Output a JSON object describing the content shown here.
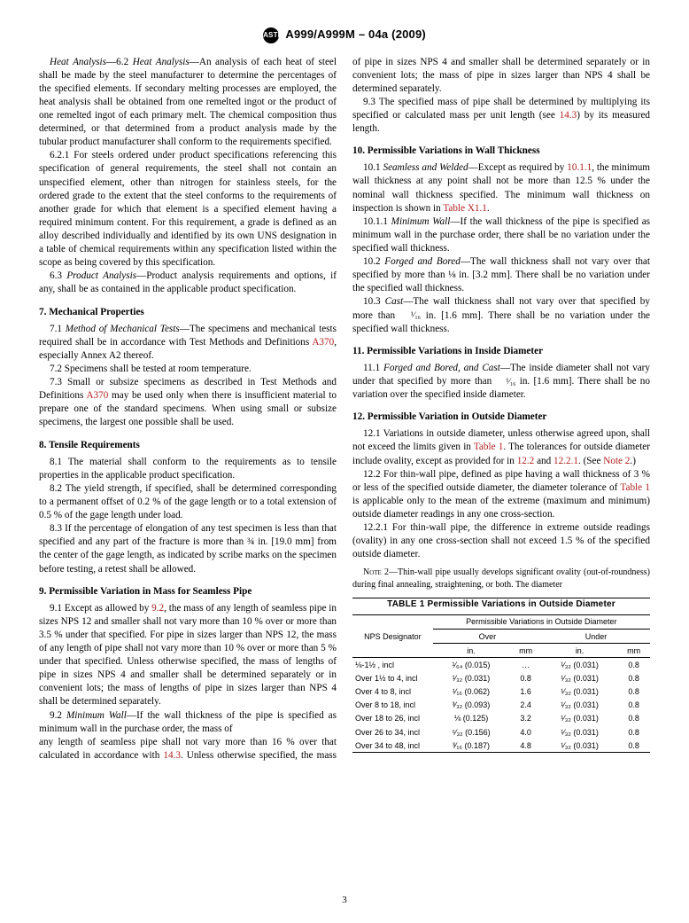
{
  "header": {
    "spec": "A999/A999M – 04a (2009)",
    "logo_abbr": "ASTM"
  },
  "page_number": "3",
  "left_col": {
    "p6_2": "6.2 Heat Analysis—An analysis of each heat of steel shall be made by the steel manufacturer to determine the percentages of the specified elements. If secondary melting processes are employed, the heat analysis shall be obtained from one remelted ingot or the product of one remelted ingot of each primary melt. The chemical composition thus determined, or that determined from a product analysis made by the tubular product manufacturer shall conform to the requirements specified.",
    "p6_2_1": "6.2.1 For steels ordered under product specifications referencing this specification of general requirements, the steel shall not contain an unspecified element, other than nitrogen for stainless steels, for the ordered grade to the extent that the steel conforms to the requirements of another grade for which that element is a specified element having a required minimum content. For this requirement, a grade is defined as an alloy described individually and identified by its own UNS designation in a table of chemical requirements within any specification listed within the scope as being covered by this specification.",
    "p6_3": "6.3 Product Analysis—Product analysis requirements and options, if any, shall be as contained in the applicable product specification.",
    "h7": "7. Mechanical Properties",
    "p7_1a": "7.1 Method of Mechanical Tests—The specimens and mechanical tests required shall be in accordance with Test Methods and Definitions ",
    "p7_1b": ", especially Annex A2 thereof.",
    "ref_A370": "A370",
    "p7_2": "7.2 Specimens shall be tested at room temperature.",
    "p7_3a": "7.3 Small or subsize specimens as described in Test Methods and Definitions ",
    "p7_3b": " may be used only when there is insufficient material to prepare one of the standard specimens. When using small or subsize specimens, the largest one possible shall be used.",
    "h8": "8. Tensile Requirements",
    "p8_1": "8.1 The material shall conform to the requirements as to tensile properties in the applicable product specification.",
    "p8_2": "8.2 The yield strength, if specified, shall be determined corresponding to a permanent offset of 0.2 % of the gage length or to a total extension of 0.5 % of the gage length under load.",
    "p8_3": "8.3 If the percentage of elongation of any test specimen is less than that specified and any part of the fracture is more than ¾ in. [19.0 mm] from the center of the gage length, as indicated by scribe marks on the specimen before testing, a retest shall be allowed.",
    "h9": "9. Permissible Variation in Mass for Seamless Pipe",
    "p9_1a": "9.1 Except as allowed by ",
    "ref_9_2": "9.2",
    "p9_1b": ", the mass of any length of seamless pipe in sizes NPS 12 and smaller shall not vary more than 10 % over or more than 3.5 % under that specified. For pipe in sizes larger than NPS 12, the mass of any length of pipe shall not vary more than 10 % over or more than 5 % under that specified. Unless otherwise specified, the mass of lengths of pipe in sizes NPS 4 and smaller shall be determined separately or in convenient lots; the mass of lengths of pipe in sizes larger than NPS 4 shall be determined separately.",
    "p9_2": "9.2 Minimum Wall—If the wall thickness of the pipe is specified as minimum wall in the purchase order, the mass of"
  },
  "right_col": {
    "p9_2cont_a": "any length of seamless pipe shall not vary more than 16 % over that calculated in accordance with ",
    "ref_14_3": "14.3",
    "p9_2cont_b": ". Unless otherwise specified, the mass of pipe in sizes NPS 4 and smaller shall be determined separately or in convenient lots; the mass of pipe in sizes larger than NPS 4 shall be determined separately.",
    "p9_3a": "9.3 The specified mass of pipe shall be determined by multiplying its specified or calculated mass per unit length (see ",
    "p9_3b": ") by its measured length.",
    "h10": "10. Permissible Variations in Wall Thickness",
    "p10_1a": "10.1 Seamless and Welded—Except as required by ",
    "ref_10_1_1": "10.1.1",
    "p10_1b": ", the minimum wall thickness at any point shall not be more than 12.5 % under the nominal wall thickness specified. The minimum wall thickness on inspection is shown in ",
    "ref_TX11": "Table X1.1",
    "p10_1c": ".",
    "p10_1_1": "10.1.1 Minimum Wall—If the wall thickness of the pipe is specified as minimum wall in the purchase order, there shall be no variation under the specified wall thickness.",
    "p10_2": "10.2 Forged and Bored—The wall thickness shall not vary over that specified by more than ⅛ in. [3.2 mm]. There shall be no variation under the specified wall thickness.",
    "p10_3": "10.3 Cast—The wall thickness shall not vary over that specified by more than ¹⁄₁₆ in. [1.6 mm]. There shall be no variation under the specified wall thickness.",
    "h11": "11. Permissible Variations in Inside Diameter",
    "p11_1": "11.1 Forged and Bored, and Cast—The inside diameter shall not vary under that specified by more than ¹⁄₁₆ in. [1.6 mm]. There shall be no variation over the specified inside diameter.",
    "h12": "12. Permissible Variation in Outside Diameter",
    "p12_1a": "12.1 Variations in outside diameter, unless otherwise agreed upon, shall not exceed the limits given in ",
    "ref_T1": "Table 1",
    "p12_1b": ". The tolerances for outside diameter include ovality, except as provided for in ",
    "ref_12_2": "12.2",
    "p12_1c": " and ",
    "ref_12_2_1": "12.2.1",
    "p12_1d": ". (See ",
    "ref_N2": "Note 2",
    "p12_1e": ".)",
    "p12_2a": "12.2 For thin-wall pipe, defined as pipe having a wall thickness of 3 % or less of the specified outside diameter, the diameter tolerance of ",
    "p12_2b": " is applicable only to the mean of the extreme (maximum and minimum) outside diameter readings in any one cross-section.",
    "p12_2_1": "12.2.1 For thin-wall pipe, the difference in extreme outside readings (ovality) in any one cross-section shall not exceed 1.5 % of the specified outside diameter.",
    "note2": "NOTE 2—Thin-wall pipe usually develops significant ovality (out-of-roundness) during final annealing, straightening, or both. The diameter"
  },
  "table": {
    "title": "TABLE 1  Permissible Variations in Outside Diameter",
    "col1_header": "NPS Designator",
    "super_header": "Permissible Variations in Outside Diameter",
    "over_label": "Over",
    "under_label": "Under",
    "in_label": "in.",
    "mm_label": "mm",
    "rows": [
      {
        "d": "⅛-1½ , incl",
        "oi": "¹⁄₆₄  (0.015)",
        "om": "…",
        "ui": "¹⁄₃₂ (0.031)",
        "um": "0.8"
      },
      {
        "d": "Over 1½ to 4, incl",
        "oi": "¹⁄₃₂  (0.031)",
        "om": "0.8",
        "ui": "¹⁄₃₂ (0.031)",
        "um": "0.8"
      },
      {
        "d": "Over 4 to 8, incl",
        "oi": "¹⁄₁₆  (0.062)",
        "om": "1.6",
        "ui": "¹⁄₃₂ (0.031)",
        "um": "0.8"
      },
      {
        "d": "Over 8 to 18, incl",
        "oi": "³⁄₃₂  (0.093)",
        "om": "2.4",
        "ui": "¹⁄₃₂ (0.031)",
        "um": "0.8"
      },
      {
        "d": "Over 18 to 26, incl",
        "oi": "⅛  (0.125)",
        "om": "3.2",
        "ui": "¹⁄₃₂ (0.031)",
        "um": "0.8"
      },
      {
        "d": "Over 26 to 34, incl",
        "oi": "⁵⁄₃₂  (0.156)",
        "om": "4.0",
        "ui": "¹⁄₃₂ (0.031)",
        "um": "0.8"
      },
      {
        "d": "Over 34 to 48, incl",
        "oi": "³⁄₁₆  (0.187)",
        "om": "4.8",
        "ui": "¹⁄₃₂ (0.031)",
        "um": "0.8"
      }
    ]
  }
}
